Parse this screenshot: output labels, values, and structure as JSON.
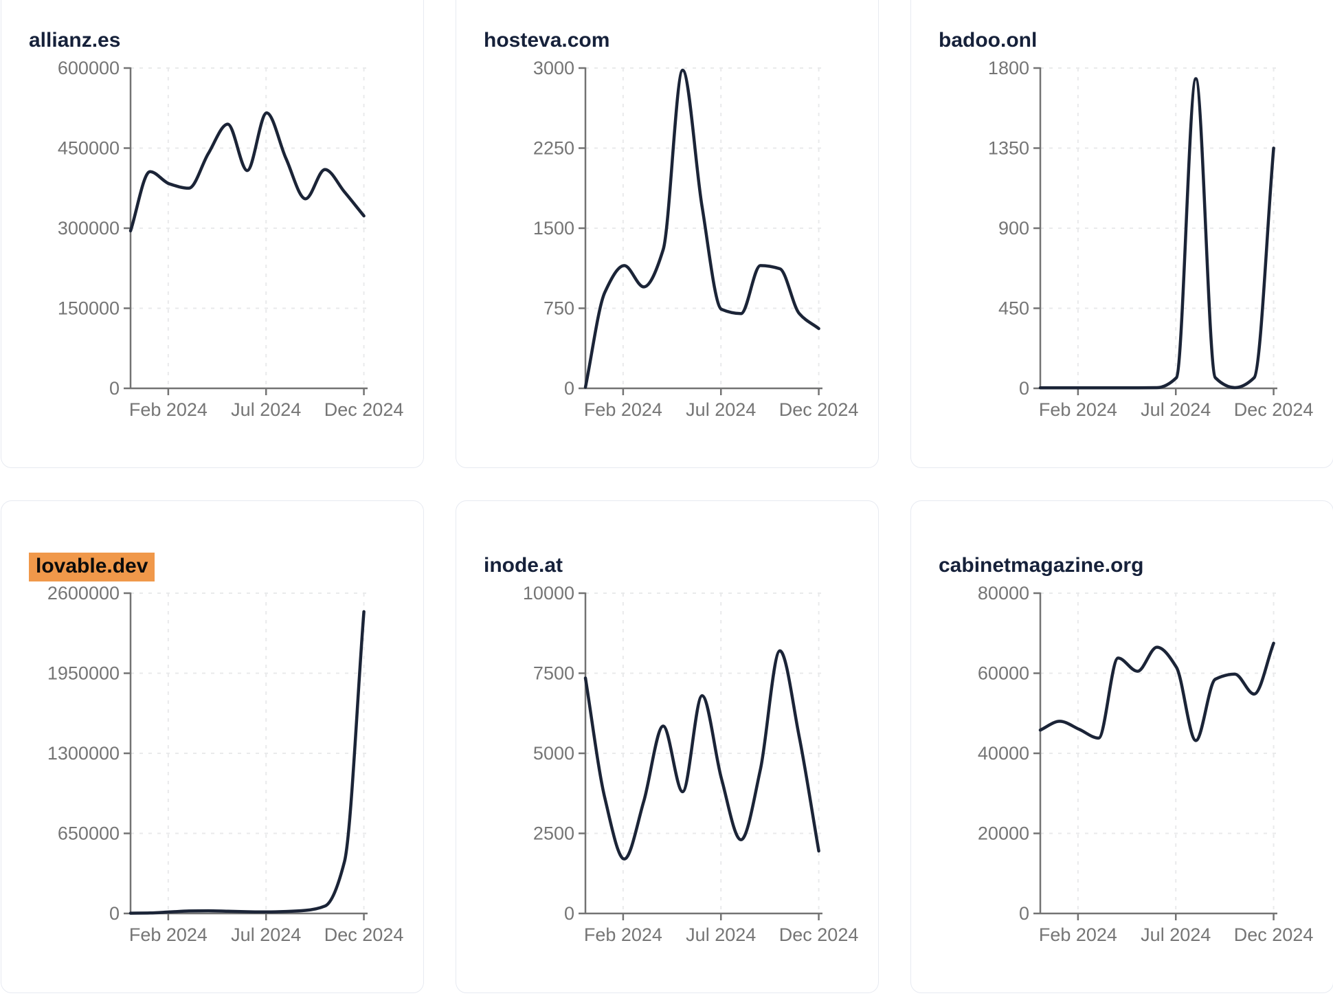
{
  "x_axis_labels": [
    "Feb 2024",
    "Jul 2024",
    "Dec 2024"
  ],
  "styles": {
    "line_color": "#1b2437",
    "axis_color": "#737373",
    "tick_label_color": "#757575",
    "grid_color": "#e9eaeb",
    "title_color": "#16213a",
    "highlight_bg": "#f0984a",
    "card_border": "#e7eaf1"
  },
  "chart_data": [
    {
      "type": "line",
      "title": "allianz.es",
      "highlighted": false,
      "ylim": [
        0,
        600000
      ],
      "y_ticks": [
        0,
        150000,
        300000,
        450000,
        600000
      ],
      "x_tick_labels": [
        "Feb 2024",
        "Jul 2024",
        "Dec 2024"
      ],
      "grid": true,
      "values": [
        295000,
        406000,
        383000,
        375000,
        440000,
        495000,
        408000,
        516000,
        430000,
        355000,
        410000,
        368000,
        323000
      ]
    },
    {
      "type": "line",
      "title": "hosteva.com",
      "highlighted": false,
      "ylim": [
        0,
        3000
      ],
      "y_ticks": [
        0,
        750,
        1500,
        2250,
        3000
      ],
      "x_tick_labels": [
        "Feb 2024",
        "Jul 2024",
        "Dec 2024"
      ],
      "grid": true,
      "values": [
        10,
        900,
        1150,
        950,
        1300,
        2980,
        1700,
        740,
        700,
        1150,
        1120,
        700,
        560
      ]
    },
    {
      "type": "line",
      "title": "badoo.onl",
      "highlighted": false,
      "ylim": [
        0,
        1800
      ],
      "y_ticks": [
        0,
        450,
        900,
        1350,
        1800
      ],
      "x_tick_labels": [
        "Feb 2024",
        "Jul 2024",
        "Dec 2024"
      ],
      "grid": true,
      "values": [
        3,
        3,
        3,
        3,
        3,
        3,
        4,
        60,
        1740,
        60,
        4,
        60,
        1350
      ]
    },
    {
      "type": "line",
      "title": "lovable.dev",
      "highlighted": true,
      "ylim": [
        0,
        2600000
      ],
      "y_ticks": [
        0,
        650000,
        1300000,
        1950000,
        2600000
      ],
      "x_tick_labels": [
        "Feb 2024",
        "Jul 2024",
        "Dec 2024"
      ],
      "grid": true,
      "values": [
        2000,
        4000,
        12000,
        20000,
        22000,
        18000,
        14000,
        12000,
        16000,
        25000,
        60000,
        420000,
        2450000
      ]
    },
    {
      "type": "line",
      "title": "inode.at",
      "highlighted": false,
      "ylim": [
        0,
        10000
      ],
      "y_ticks": [
        0,
        2500,
        5000,
        7500,
        10000
      ],
      "x_tick_labels": [
        "Feb 2024",
        "Jul 2024",
        "Dec 2024"
      ],
      "grid": true,
      "values": [
        7350,
        3600,
        1700,
        3500,
        5850,
        3800,
        6800,
        4200,
        2300,
        4500,
        8200,
        5500,
        1950
      ]
    },
    {
      "type": "line",
      "title": "cabinetmagazine.org",
      "highlighted": false,
      "ylim": [
        0,
        80000
      ],
      "y_ticks": [
        0,
        20000,
        40000,
        60000,
        80000
      ],
      "x_tick_labels": [
        "Feb 2024",
        "Jul 2024",
        "Dec 2024"
      ],
      "grid": true,
      "values": [
        45800,
        48000,
        46000,
        43800,
        63800,
        60500,
        66500,
        61500,
        43200,
        58500,
        59800,
        54800,
        67500
      ]
    }
  ]
}
